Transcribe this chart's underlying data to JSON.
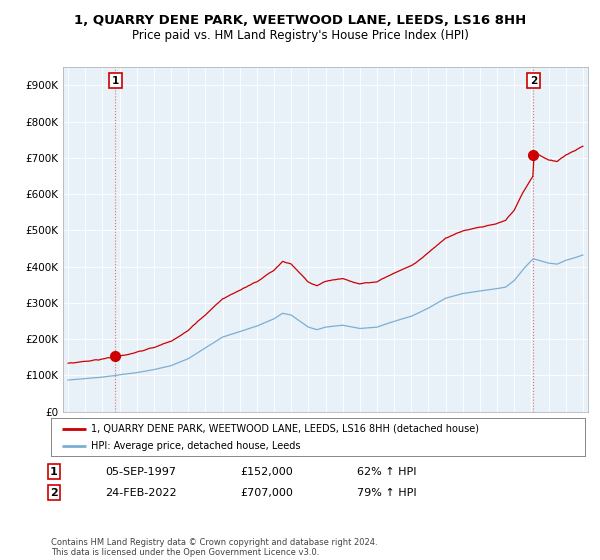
{
  "title": "1, QUARRY DENE PARK, WEETWOOD LANE, LEEDS, LS16 8HH",
  "subtitle": "Price paid vs. HM Land Registry's House Price Index (HPI)",
  "ylim": [
    0,
    950000
  ],
  "yticks": [
    0,
    100000,
    200000,
    300000,
    400000,
    500000,
    600000,
    700000,
    800000,
    900000
  ],
  "ytick_labels": [
    "£0",
    "£100K",
    "£200K",
    "£300K",
    "£400K",
    "£500K",
    "£600K",
    "£700K",
    "£800K",
    "£900K"
  ],
  "hpi_color": "#7bafd4",
  "price_color": "#cc0000",
  "dashed_color": "#e07070",
  "plot_bg_color": "#e8f0f8",
  "background_color": "#ffffff",
  "grid_color": "#ffffff",
  "sale1_date": 1997.75,
  "sale1_price": 152000,
  "sale1_label": "1",
  "sale2_date": 2022.12,
  "sale2_price": 707000,
  "sale2_label": "2",
  "legend_line1": "1, QUARRY DENE PARK, WEETWOOD LANE, LEEDS, LS16 8HH (detached house)",
  "legend_line2": "HPI: Average price, detached house, Leeds",
  "table_row1": [
    "1",
    "05-SEP-1997",
    "£152,000",
    "62% ↑ HPI"
  ],
  "table_row2": [
    "2",
    "24-FEB-2022",
    "£707,000",
    "79% ↑ HPI"
  ],
  "footer": "Contains HM Land Registry data © Crown copyright and database right 2024.\nThis data is licensed under the Open Government Licence v3.0.",
  "title_fontsize": 9.5,
  "subtitle_fontsize": 8.5,
  "tick_fontsize": 7.5
}
